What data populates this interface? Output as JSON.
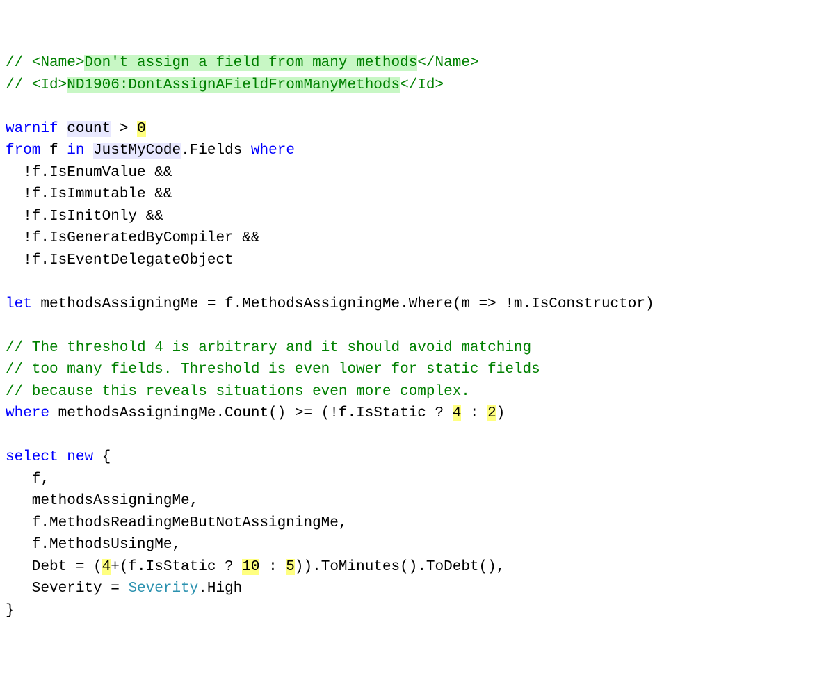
{
  "line1": {
    "p1": "// <Name>",
    "p2": "Don't assign a field from many methods",
    "p3": "</Name>"
  },
  "line2": {
    "p1": "// <Id>",
    "p2": "ND1906:DontAssignAFieldFromManyMethods",
    "p3": "</Id>"
  },
  "line4": {
    "kw1": "warnif",
    "sp1": " ",
    "hl1": "count",
    "sp2": " > ",
    "hl2": "0"
  },
  "line5": {
    "kw1": "from",
    "t1": " f ",
    "kw2": "in",
    "sp1": " ",
    "hl1": "JustMyCode",
    "t2": ".Fields ",
    "kw3": "where"
  },
  "line6": "  !f.IsEnumValue &&",
  "line7": "  !f.IsImmutable &&",
  "line8": "  !f.IsInitOnly &&",
  "line9": "  !f.IsGeneratedByCompiler &&",
  "line10": "  !f.IsEventDelegateObject",
  "line12": {
    "kw1": "let",
    "t1": " methodsAssigningMe = f.MethodsAssigningMe.Where(m => !m.IsConstructor)"
  },
  "line14": "// The threshold 4 is arbitrary and it should avoid matching ",
  "line15": "// too many fields. Threshold is even lower for static fields",
  "line16": "// because this reveals situations even more complex.",
  "line17": {
    "kw1": "where",
    "t1": " methodsAssigningMe.Count() >= (!f.IsStatic ? ",
    "n1": "4",
    "t2": " : ",
    "n2": "2",
    "t3": ")"
  },
  "line19": {
    "kw1": "select",
    "sp": " ",
    "kw2": "new",
    "t1": " { "
  },
  "line20": "   f,",
  "line21": "   methodsAssigningMe,",
  "line22": "   f.MethodsReadingMeButNotAssigningMe,",
  "line23": "   f.MethodsUsingMe,",
  "line24": {
    "t1": "   Debt = (",
    "n1": "4",
    "t2": "+(f.IsStatic ? ",
    "n2": "10",
    "t3": " : ",
    "n3": "5",
    "t4": ")).ToMinutes().ToDebt(),"
  },
  "line25": {
    "t1": "   Severity = ",
    "tp": "Severity",
    "t2": ".High"
  },
  "line26": "}"
}
